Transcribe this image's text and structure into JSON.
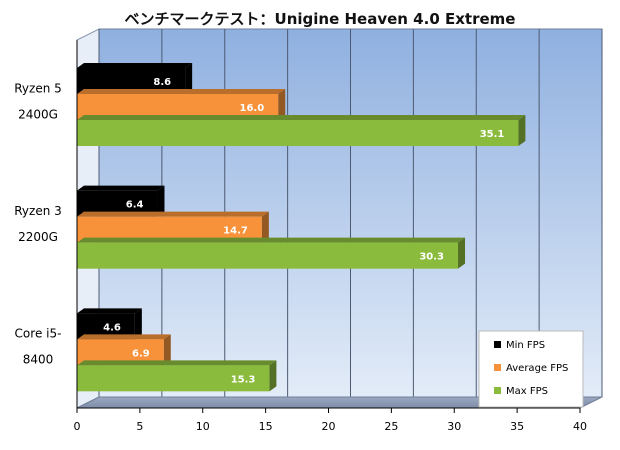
{
  "chart_data": {
    "type": "bar",
    "orientation": "horizontal",
    "title": "ベンチマークテスト：Unigine Heaven 4.0 Extreme",
    "categories": [
      [
        "Ryzen 5",
        "2400G"
      ],
      [
        "Ryzen 3",
        "2200G"
      ],
      [
        "Core i5-",
        "8400"
      ]
    ],
    "series": [
      {
        "name": "Min FPS",
        "color": "#000000",
        "values": [
          8.6,
          6.4,
          4.6
        ]
      },
      {
        "name": "Average FPS",
        "color": "#f7923a",
        "values": [
          16.0,
          14.7,
          6.9
        ]
      },
      {
        "name": "Max FPS",
        "color": "#8bbb3c",
        "values": [
          35.1,
          30.3,
          15.3
        ]
      }
    ],
    "data_labels": [
      [
        "8.6",
        "16.0",
        "35.1"
      ],
      [
        "6.4",
        "14.7",
        "30.3"
      ],
      [
        "4.6",
        "6.9",
        "15.3"
      ]
    ],
    "xlim": [
      0,
      40
    ],
    "xticks": [
      0,
      5,
      10,
      15,
      20,
      25,
      30,
      35,
      40
    ],
    "grid": true,
    "legend_position": "bottom-right"
  }
}
